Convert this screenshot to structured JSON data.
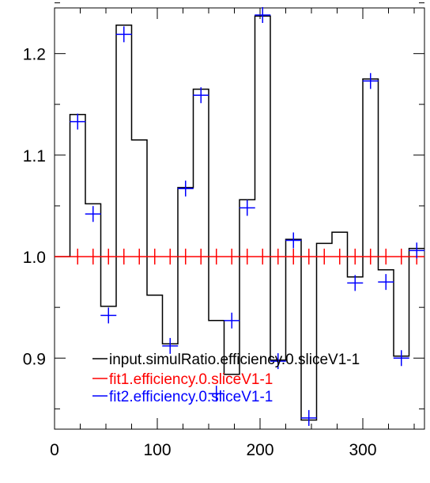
{
  "chart_data": {
    "type": "line",
    "title": "",
    "xlabel": "",
    "ylabel": "",
    "xlim": [
      0,
      360
    ],
    "ylim": [
      0.83,
      1.245
    ],
    "grid": false,
    "legend_placement": "bottom-center",
    "x_ticks": [
      {
        "value": 0,
        "label": "0"
      },
      {
        "value": 100,
        "label": "100"
      },
      {
        "value": 200,
        "label": "200"
      },
      {
        "value": 300,
        "label": "300"
      }
    ],
    "y_ticks": [
      {
        "value": 0.9,
        "label": "0.9"
      },
      {
        "value": 1.0,
        "label": "1.0"
      },
      {
        "value": 1.1,
        "label": "1.1"
      },
      {
        "value": 1.2,
        "label": "1.2"
      }
    ],
    "bin_edges": [
      0,
      15,
      30,
      45,
      60,
      75,
      90,
      105,
      120,
      135,
      150,
      165,
      180,
      195,
      210,
      225,
      240,
      255,
      270,
      285,
      300,
      315,
      330,
      345,
      360
    ],
    "series": [
      {
        "name": "input.simulRatio.efficiency.0.sliceV1-1",
        "style": "histogram",
        "color": "#000000",
        "values": [
          1.0,
          1.14,
          1.052,
          0.951,
          1.228,
          1.115,
          0.962,
          0.914,
          1.068,
          1.165,
          0.937,
          0.884,
          1.056,
          1.237,
          0.898,
          1.017,
          0.839,
          1.013,
          1.024,
          0.98,
          1.175,
          0.987,
          0.902,
          1.008
        ]
      },
      {
        "name": "fit1.efficiency.0.sliceV1-1",
        "style": "markers",
        "color": "#ff0000",
        "x": [
          22.5,
          37.5,
          52.5,
          67.5,
          82.5,
          97.5,
          112.5,
          127.5,
          142.5,
          157.5,
          172.5,
          187.5,
          202.5,
          217.5,
          232.5,
          247.5,
          262.5,
          277.5,
          292.5,
          307.5,
          322.5,
          337.5,
          352.5
        ],
        "values": [
          1.0,
          1.0,
          1.0,
          1.0,
          1.0,
          1.0,
          1.0,
          1.0,
          1.0,
          1.0,
          1.0,
          1.0,
          1.0,
          1.0,
          1.0,
          1.0,
          1.0,
          1.0,
          1.0,
          1.0,
          1.0,
          1.0,
          1.0
        ]
      },
      {
        "name": "fit2.efficiency.0.sliceV1-1",
        "style": "markers",
        "color": "#0000ff",
        "x": [
          22.5,
          37.5,
          52.5,
          67.5,
          112.5,
          127.5,
          142.5,
          157.5,
          172.5,
          187.5,
          202.5,
          217.5,
          232.5,
          247.5,
          292.5,
          307.5,
          322.5,
          337.5,
          352.5
        ],
        "values": [
          1.133,
          1.042,
          0.942,
          1.219,
          0.912,
          1.067,
          1.159,
          0.865,
          0.937,
          1.048,
          1.238,
          0.897,
          1.016,
          0.841,
          0.974,
          1.173,
          0.975,
          0.9,
          1.006
        ]
      }
    ]
  }
}
